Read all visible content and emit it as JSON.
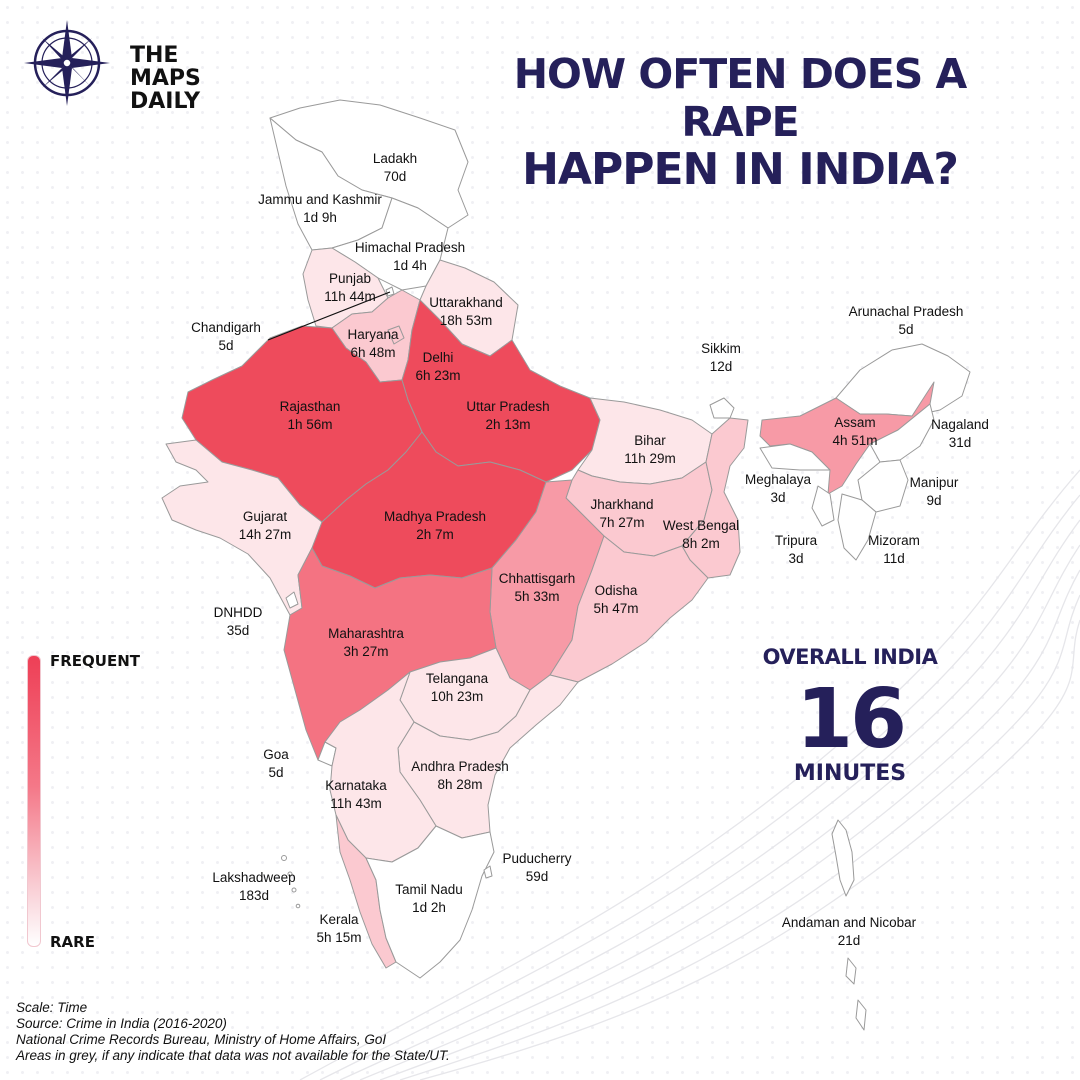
{
  "brand": {
    "lines": [
      "THE",
      "MAPS",
      "DAILY"
    ]
  },
  "title": {
    "line1": "HOW OFTEN DOES A RAPE",
    "line2": "HAPPEN IN INDIA?"
  },
  "colors": {
    "title": "#25205a",
    "very_frequent": "#ee4b5c",
    "frequent": "#f47382",
    "medium": "#f79aa6",
    "light": "#fbc9d0",
    "lighter": "#fde6e9",
    "rare": "#ffffff",
    "border": "#9a9a9a"
  },
  "regions": {
    "ladakh": {
      "name": "Ladakh",
      "time": "70d",
      "level": "rare"
    },
    "jk": {
      "name": "Jammu and Kashmir",
      "time": "1d 9h",
      "level": "rare"
    },
    "hp": {
      "name": "Himachal Pradesh",
      "time": "1d 4h",
      "level": "rare"
    },
    "punjab": {
      "name": "Punjab",
      "time": "11h 44m",
      "level": "lighter"
    },
    "chandigarh": {
      "name": "Chandigarh",
      "time": "5d",
      "level": "rare"
    },
    "uttarakhand": {
      "name": "Uttarakhand",
      "time": "18h 53m",
      "level": "lighter"
    },
    "haryana": {
      "name": "Haryana",
      "time": "6h 48m",
      "level": "light"
    },
    "delhi": {
      "name": "Delhi",
      "time": "6h 23m",
      "level": "light"
    },
    "rajasthan": {
      "name": "Rajasthan",
      "time": "1h 56m",
      "level": "very_frequent"
    },
    "up": {
      "name": "Uttar Pradesh",
      "time": "2h 13m",
      "level": "very_frequent"
    },
    "bihar": {
      "name": "Bihar",
      "time": "11h 29m",
      "level": "lighter"
    },
    "gujarat": {
      "name": "Gujarat",
      "time": "14h 27m",
      "level": "lighter"
    },
    "mp": {
      "name": "Madhya Pradesh",
      "time": "2h 7m",
      "level": "very_frequent"
    },
    "jharkhand": {
      "name": "Jharkhand",
      "time": "7h 27m",
      "level": "light"
    },
    "wb": {
      "name": "West Bengal",
      "time": "8h 2m",
      "level": "light"
    },
    "chhattisgarh": {
      "name": "Chhattisgarh",
      "time": "5h 33m",
      "level": "medium"
    },
    "odisha": {
      "name": "Odisha",
      "time": "5h 47m",
      "level": "light"
    },
    "dnhdd": {
      "name": "DNHDD",
      "time": "35d",
      "level": "rare"
    },
    "maharashtra": {
      "name": "Maharashtra",
      "time": "3h 27m",
      "level": "frequent"
    },
    "telangana": {
      "name": "Telangana",
      "time": "10h 23m",
      "level": "lighter"
    },
    "goa": {
      "name": "Goa",
      "time": "5d",
      "level": "rare"
    },
    "karnataka": {
      "name": "Karnataka",
      "time": "11h 43m",
      "level": "lighter"
    },
    "ap": {
      "name": "Andhra Pradesh",
      "time": "8h 28m",
      "level": "lighter"
    },
    "lakshadweep": {
      "name": "Lakshadweep",
      "time": "183d",
      "level": "rare"
    },
    "puducherry": {
      "name": "Puducherry",
      "time": "59d",
      "level": "rare"
    },
    "tn": {
      "name": "Tamil Nadu",
      "time": "1d 2h",
      "level": "rare"
    },
    "kerala": {
      "name": "Kerala",
      "time": "5h 15m",
      "level": "light"
    },
    "arunachal": {
      "name": "Arunachal Pradesh",
      "time": "5d",
      "level": "rare"
    },
    "sikkim": {
      "name": "Sikkim",
      "time": "12d",
      "level": "rare"
    },
    "assam": {
      "name": "Assam",
      "time": "4h 51m",
      "level": "medium"
    },
    "nagaland": {
      "name": "Nagaland",
      "time": "31d",
      "level": "rare"
    },
    "meghalaya": {
      "name": "Meghalaya",
      "time": "3d",
      "level": "rare"
    },
    "manipur": {
      "name": "Manipur",
      "time": "9d",
      "level": "rare"
    },
    "tripura": {
      "name": "Tripura",
      "time": "3d",
      "level": "rare"
    },
    "mizoram": {
      "name": "Mizoram",
      "time": "11d",
      "level": "rare"
    },
    "andaman": {
      "name": "Andaman and Nicobar",
      "time": "21d",
      "level": "rare"
    }
  },
  "legend": {
    "top": "FREQUENT",
    "bottom": "RARE"
  },
  "overall": {
    "title": "OVERALL INDIA",
    "value": "16",
    "unit": "MINUTES"
  },
  "footer": {
    "scale": "Scale: Time",
    "source": "Source: Crime in India (2016-2020)",
    "agency": "National Crime Records Bureau, Ministry of Home Affairs, GoI",
    "note": "Areas in grey, if any indicate that data was not available for the State/UT."
  }
}
